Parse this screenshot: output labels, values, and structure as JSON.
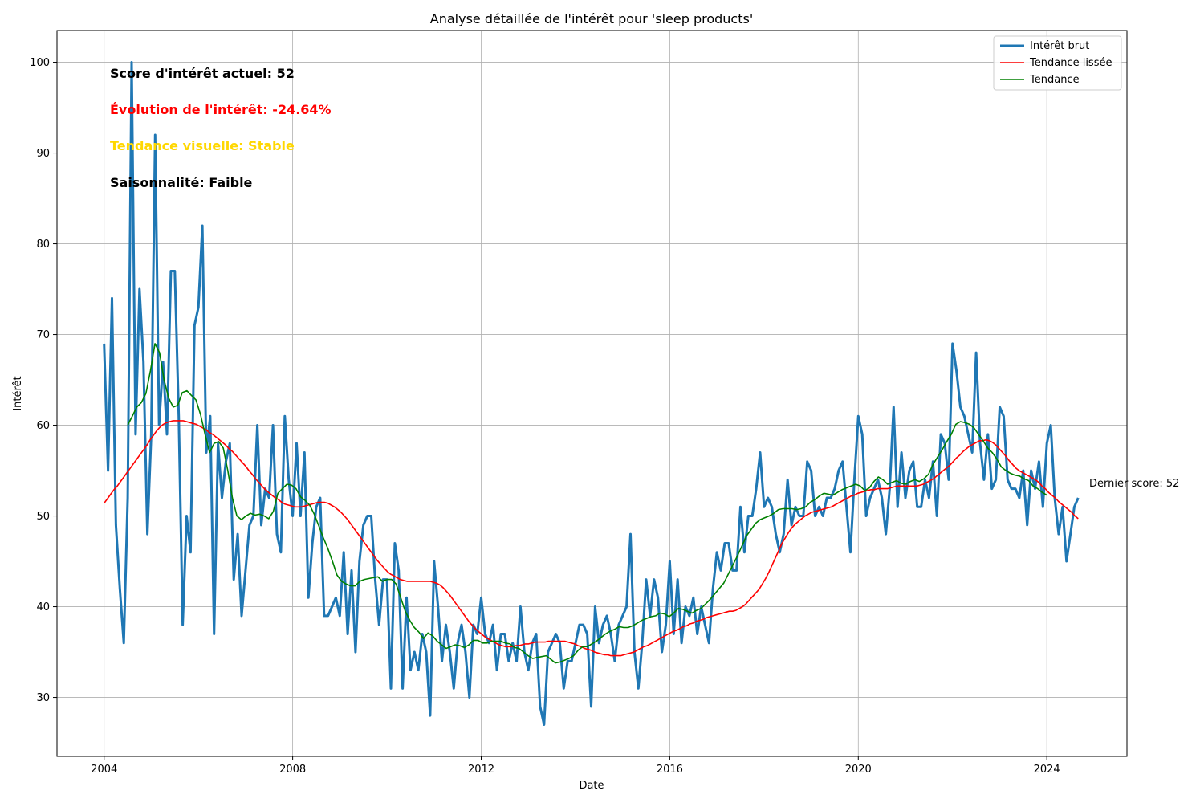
{
  "chart_data": {
    "type": "line",
    "title": "Analyse détaillée de l'intérêt pour 'sleep products'",
    "xlabel": "Date",
    "ylabel": "Intérêt",
    "xlim": [
      2003.0,
      2025.7
    ],
    "ylim": [
      23.5,
      103.5
    ],
    "x_ticks": [
      2004,
      2008,
      2012,
      2016,
      2020,
      2024
    ],
    "y_ticks": [
      30,
      40,
      50,
      60,
      70,
      80,
      90,
      100
    ],
    "grid": true,
    "legend_position": "top-right",
    "colors": {
      "raw": "#1f77b4",
      "smoothed": "#ff0000",
      "trend": "#008000",
      "evolution_text": "#ff0000",
      "trend_text": "#ffd700",
      "neutral_text": "#000000"
    },
    "series": [
      {
        "name": "Intérêt brut",
        "values": [
          69,
          55,
          74,
          49,
          42,
          36,
          52,
          100,
          59,
          75,
          67,
          48,
          59,
          92,
          60,
          67,
          59,
          77,
          77,
          61,
          38,
          50,
          46,
          71,
          73,
          82,
          57,
          61,
          37,
          58,
          52,
          56,
          58,
          43,
          48,
          39,
          44,
          49,
          50,
          60,
          49,
          53,
          52,
          60,
          48,
          46,
          61,
          54,
          50,
          58,
          50,
          57,
          41,
          47,
          51,
          52,
          39,
          39,
          40,
          41,
          39,
          46,
          37,
          44,
          35,
          45,
          49,
          50,
          50,
          43,
          38,
          43,
          43,
          31,
          47,
          44,
          31,
          41,
          33,
          35,
          33,
          37,
          35,
          28,
          45,
          40,
          34,
          38,
          35,
          31,
          36,
          38,
          35,
          30,
          38,
          37,
          41,
          37,
          36,
          38,
          33,
          37,
          37,
          34,
          36,
          34,
          40,
          35,
          33,
          36,
          37,
          29,
          27,
          35,
          36,
          37,
          36,
          31,
          34,
          34,
          36,
          38,
          38,
          37,
          29,
          40,
          36,
          38,
          39,
          37,
          34,
          38,
          39,
          40,
          48,
          35,
          31,
          36,
          43,
          39,
          43,
          41,
          35,
          38,
          45,
          37,
          43,
          36,
          40,
          39,
          41,
          37,
          40,
          38,
          36,
          42,
          46,
          44,
          47,
          47,
          44,
          44,
          51,
          46,
          50,
          50,
          53,
          57,
          51,
          52,
          51,
          48,
          46,
          48,
          54,
          49,
          51,
          50,
          50,
          56,
          55,
          50,
          51,
          50,
          52,
          52,
          53,
          55,
          56,
          51,
          46,
          54,
          61,
          59,
          50,
          52,
          53,
          54,
          52,
          48,
          53,
          62,
          51,
          57,
          52,
          55,
          56,
          51,
          51,
          54,
          52,
          56,
          50,
          59,
          58,
          54,
          69,
          66,
          62,
          61,
          59,
          57,
          68,
          58,
          54,
          59,
          53,
          54,
          62,
          61,
          54,
          53,
          53,
          52,
          55,
          49,
          55,
          53,
          56,
          51,
          58,
          60,
          52,
          48,
          51,
          45,
          48,
          51,
          52
        ]
      },
      {
        "name": "Tendance lissée",
        "values": [
          51.4,
          51.9,
          52.4,
          52.9,
          53.3,
          53.8,
          54.3,
          54.8,
          55.3,
          55.8,
          56.3,
          56.8,
          57.3,
          57.8,
          58.4,
          58.9,
          59.4,
          59.8,
          60.1,
          60.3,
          60.4,
          60.5,
          60.5,
          60.5,
          60.5,
          60.4,
          60.3,
          60.2,
          60.1,
          59.9,
          59.7,
          59.5,
          59.2,
          59.0,
          58.7,
          58.4,
          58.1,
          57.8,
          57.4,
          57.1,
          56.7,
          56.3,
          55.9,
          55.5,
          55.0,
          54.6,
          54.1,
          53.7,
          53.3,
          52.9,
          52.6,
          52.3,
          52.0,
          51.8,
          51.5,
          51.3,
          51.2,
          51.1,
          51.0,
          51.0,
          51.0,
          51.1,
          51.2,
          51.3,
          51.4,
          51.5,
          51.5,
          51.5,
          51.4,
          51.2,
          51.0,
          50.7,
          50.4,
          50.0,
          49.6,
          49.1,
          48.6,
          48.1,
          47.6,
          47.1,
          46.6,
          46.1,
          45.6,
          45.1,
          44.7,
          44.3,
          43.9,
          43.6,
          43.4,
          43.2,
          43.0,
          42.9,
          42.8,
          42.8,
          42.8,
          42.8,
          42.8,
          42.8,
          42.8,
          42.8,
          42.7,
          42.6,
          42.4,
          42.1,
          41.7,
          41.3,
          40.8,
          40.3,
          39.8,
          39.3,
          38.8,
          38.3,
          37.9,
          37.5,
          37.2,
          36.9,
          36.6,
          36.4,
          36.2,
          36.0,
          35.8,
          35.7,
          35.6,
          35.6,
          35.6,
          35.7,
          35.7,
          35.8,
          35.9,
          35.9,
          36.0,
          36.1,
          36.1,
          36.1,
          36.1,
          36.2,
          36.2,
          36.2,
          36.2,
          36.2,
          36.2,
          36.1,
          36.0,
          35.9,
          35.7,
          35.6,
          35.4,
          35.3,
          35.2,
          35.0,
          34.9,
          34.8,
          34.7,
          34.7,
          34.6,
          34.6,
          34.6,
          34.6,
          34.7,
          34.8,
          34.9,
          35.0,
          35.2,
          35.4,
          35.6,
          35.7,
          35.9,
          36.1,
          36.3,
          36.5,
          36.7,
          36.9,
          37.1,
          37.3,
          37.4,
          37.6,
          37.8,
          37.9,
          38.1,
          38.2,
          38.4,
          38.5,
          38.6,
          38.8,
          38.9,
          39.0,
          39.1,
          39.2,
          39.3,
          39.4,
          39.5,
          39.5,
          39.6,
          39.8,
          40.0,
          40.3,
          40.7,
          41.1,
          41.5,
          41.9,
          42.5,
          43.1,
          43.8,
          44.6,
          45.4,
          46.2,
          47.0,
          47.6,
          48.2,
          48.7,
          49.1,
          49.4,
          49.7,
          50.0,
          50.2,
          50.4,
          50.5,
          50.6,
          50.7,
          50.8,
          50.9,
          51.0,
          51.2,
          51.4,
          51.6,
          51.8,
          52.0,
          52.2,
          52.3,
          52.5,
          52.6,
          52.7,
          52.8,
          52.9,
          52.9,
          53.0,
          53.0,
          53.0,
          53.0,
          53.1,
          53.2,
          53.3,
          53.3,
          53.3,
          53.3,
          53.3,
          53.3,
          53.3,
          53.4,
          53.5,
          53.7,
          53.9,
          54.1,
          54.4,
          54.7,
          55.0,
          55.3,
          55.6,
          56.0,
          56.4,
          56.7,
          57.1,
          57.4,
          57.7,
          57.9,
          58.1,
          58.3,
          58.3,
          58.4,
          58.3,
          58.1,
          57.8,
          57.4,
          57.0,
          56.6,
          56.1,
          55.7,
          55.3,
          55.0,
          54.8,
          54.6,
          54.4,
          54.2,
          54.0,
          53.7,
          53.3,
          53.0,
          52.6,
          52.3,
          52.0,
          51.6,
          51.3,
          51.0,
          50.7,
          50.4,
          50.0,
          49.7
        ]
      },
      {
        "name": "Tendance",
        "values": [
          60,
          61,
          62,
          62.5,
          63.5,
          66,
          69,
          68,
          65,
          63,
          62,
          62.2,
          63.6,
          63.8,
          63.3,
          62.8,
          61.2,
          59,
          57,
          58,
          58.2,
          57.5,
          55,
          52,
          50,
          49.6,
          50,
          50.3,
          50.1,
          50.2,
          50,
          49.7,
          50.5,
          52.5,
          53,
          53.5,
          53.4,
          53,
          52.1,
          51.7,
          51.2,
          50.2,
          48.9,
          47.6,
          46.4,
          45,
          43.5,
          42.8,
          42.5,
          42.3,
          42.3,
          42.8,
          43,
          43.1,
          43.2,
          43.3,
          42.8,
          43,
          43,
          42.5,
          41,
          39.5,
          38.5,
          37.7,
          37.2,
          36.5,
          37.1,
          36.8,
          36.2,
          35.8,
          35.4,
          35.6,
          35.8,
          35.7,
          35.5,
          35.8,
          36.3,
          36.3,
          36.0,
          36.0,
          36.2,
          36.2,
          36.2,
          36.0,
          35.9,
          35.5,
          35.4,
          35.0,
          34.6,
          34.3,
          34.4,
          34.5,
          34.6,
          34.2,
          33.8,
          33.9,
          34.1,
          34.3,
          34.6,
          35.2,
          35.6,
          35.6,
          35.9,
          36.2,
          36.6,
          37.0,
          37.3,
          37.5,
          37.8,
          37.7,
          37.7,
          37.9,
          38.2,
          38.5,
          38.7,
          38.9,
          39.0,
          39.3,
          39.2,
          38.9,
          39.3,
          39.8,
          39.7,
          39.5,
          39.3,
          39.6,
          39.8,
          40.3,
          40.8,
          41.4,
          42.0,
          42.6,
          43.6,
          44.6,
          45.6,
          46.7,
          47.8,
          48.5,
          49.2,
          49.6,
          49.8,
          50.0,
          50.3,
          50.7,
          50.8,
          50.8,
          50.8,
          50.7,
          50.8,
          51.0,
          51.5,
          51.8,
          52.2,
          52.5,
          52.4,
          52.3,
          52.6,
          52.9,
          53.1,
          53.3,
          53.5,
          53.3,
          52.8,
          53.1,
          53.8,
          54.3,
          54.0,
          53.5,
          53.7,
          53.9,
          53.6,
          53.5,
          53.8,
          54.0,
          53.8,
          54.1,
          54.6,
          55.7,
          56.5,
          57.3,
          58.2,
          59.0,
          60.1,
          60.4,
          60.3,
          60.1,
          59.7,
          59.0,
          58.3,
          57.5,
          57.0,
          56.3,
          55.4,
          55.0,
          54.7,
          54.5,
          54.4,
          54.1,
          53.9,
          53.3,
          53.0,
          52.6,
          52.3
        ]
      }
    ],
    "raw_x_range": [
      2004.0,
      2024.667
    ],
    "smoothed_x_range": [
      2004.0,
      2024.667
    ],
    "trend_x_range": [
      2004.5,
      2024.0
    ],
    "annotations": {
      "current_score": "Score d'intérêt actuel: 52",
      "evolution": "Évolution de l'intérêt: -24.64%",
      "visual_trend": "Tendance visuelle: Stable",
      "seasonality": "Saisonnalité: Faible",
      "last_score": "Dernier score: 52"
    }
  }
}
